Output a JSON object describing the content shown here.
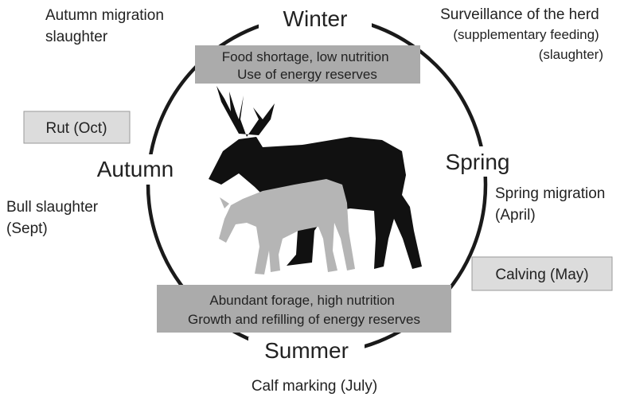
{
  "seasons": [
    "Winter",
    "Spring",
    "Summer",
    "Autumn"
  ],
  "conditions": [
    {
      "lines": [
        "Food shortage, low nutrition",
        "Use of energy reserves"
      ]
    },
    {
      "lines": [
        "Abundant forage, high nutrition",
        "Growth and refilling of energy reserves"
      ]
    }
  ],
  "events": [
    {
      "lines": [
        "Rut (Oct)"
      ]
    },
    {
      "lines": [
        "Calving (May)"
      ]
    }
  ],
  "notes": [
    {
      "lines": [
        "Autumn migration",
        "slaughter"
      ]
    },
    {
      "lines": [
        "Surveillance of the herd",
        "(supplementary feeding)",
        "(slaughter)"
      ]
    },
    {
      "lines": [
        "Spring migration",
        "(April)"
      ]
    },
    {
      "lines": [
        "Bull slaughter",
        "(Sept)"
      ]
    },
    {
      "lines": [
        "Calf marking (July)"
      ]
    }
  ]
}
